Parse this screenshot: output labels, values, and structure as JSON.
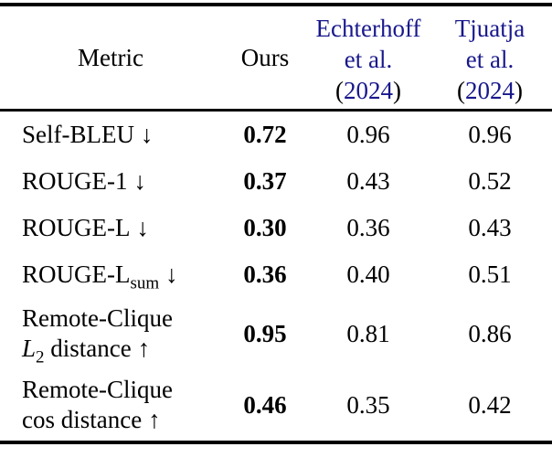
{
  "colors": {
    "citation_blue": "#18188c",
    "text": "#000000",
    "rule": "#000000"
  },
  "table": {
    "header": {
      "metric": "Metric",
      "ours": "Ours",
      "citations": [
        {
          "name": "Echterhoff",
          "etal": "et al.",
          "paren_open": "(",
          "year": "2024",
          "paren_close": ")"
        },
        {
          "name": "Tjuatja",
          "etal": "et al.",
          "paren_open": "(",
          "year": "2024",
          "paren_close": ")"
        }
      ]
    },
    "rows": [
      {
        "metric": "Self-BLEU",
        "arrow": "↓",
        "values": {
          "ours": "0.72",
          "echterhoff": "0.96",
          "tjuatja": "0.96"
        }
      },
      {
        "metric": "ROUGE-1",
        "arrow": "↓",
        "values": {
          "ours": "0.37",
          "echterhoff": "0.43",
          "tjuatja": "0.52"
        }
      },
      {
        "metric": "ROUGE-L",
        "arrow": "↓",
        "values": {
          "ours": "0.30",
          "echterhoff": "0.36",
          "tjuatja": "0.43"
        }
      },
      {
        "metric": "ROUGE-L",
        "metric_sub": "sum",
        "arrow": "↓",
        "values": {
          "ours": "0.36",
          "echterhoff": "0.40",
          "tjuatja": "0.51"
        }
      },
      {
        "metric_line1": "Remote-Clique",
        "metric_math": "L",
        "metric_math_sub": "2",
        "metric_line2": "distance",
        "arrow": "↑",
        "values": {
          "ours": "0.95",
          "echterhoff": "0.81",
          "tjuatja": "0.86"
        }
      },
      {
        "metric_line1": "Remote-Clique",
        "metric_line2": "cos distance",
        "arrow": "↑",
        "values": {
          "ours": "0.46",
          "echterhoff": "0.35",
          "tjuatja": "0.42"
        }
      }
    ]
  }
}
